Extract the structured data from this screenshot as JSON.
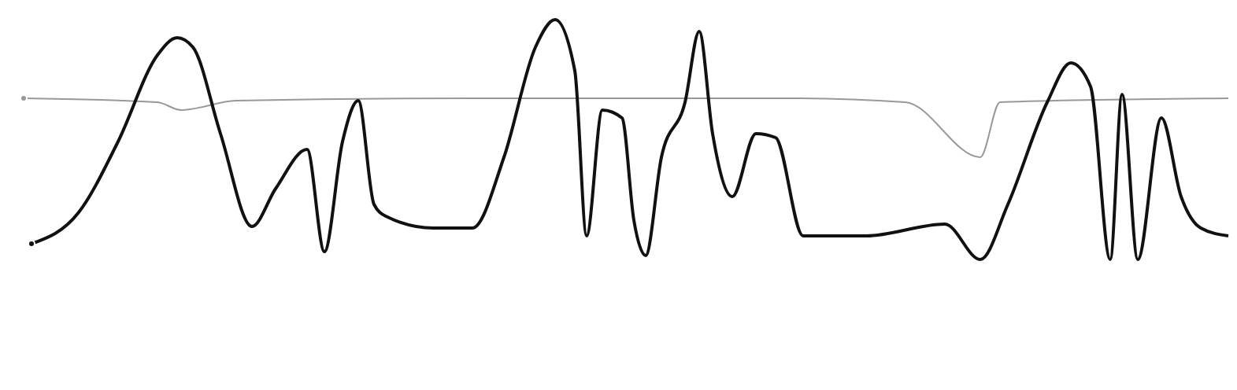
{
  "chart_data": {
    "type": "line",
    "xlim": [
      0,
      1571
    ],
    "ylim": [
      0,
      496
    ],
    "tick_labels": false,
    "grid": false,
    "series": [
      {
        "color": "#999999",
        "line_style": "solid",
        "x": [
          30,
          200,
          230,
          300,
          600,
          1000,
          1150,
          1245,
          1270,
          1560
        ],
        "values": [
          371,
          366,
          356,
          368,
          371,
          371,
          366,
          296,
          366,
          371
        ]
      },
      {
        "color": "#111111",
        "line_style": "solid",
        "x": [
          40,
          100,
          150,
          200,
          225,
          245,
          280,
          320,
          350,
          390,
          412,
          435,
          455,
          475,
          490,
          550,
          600,
          640,
          680,
          705,
          730,
          745,
          765,
          790,
          805,
          820,
          840,
          870,
          888,
          905,
          930,
          960,
          985,
          1020,
          1100,
          1200,
          1245,
          1280,
          1330,
          1360,
          1385,
          1410,
          1425,
          1445,
          1475,
          1500,
          1525,
          1560
        ],
        "values": [
          186,
          226,
          316,
          426,
          448,
          436,
          326,
          208,
          256,
          306,
          176,
          316,
          368,
          236,
          221,
          206,
          206,
          296,
          436,
          471,
          406,
          196,
          356,
          346,
          216,
          171,
          296,
          366,
          456,
          326,
          246,
          326,
          321,
          196,
          196,
          211,
          166,
          236,
          366,
          416,
          386,
          166,
          376,
          166,
          346,
          246,
          206,
          196
        ]
      }
    ]
  }
}
